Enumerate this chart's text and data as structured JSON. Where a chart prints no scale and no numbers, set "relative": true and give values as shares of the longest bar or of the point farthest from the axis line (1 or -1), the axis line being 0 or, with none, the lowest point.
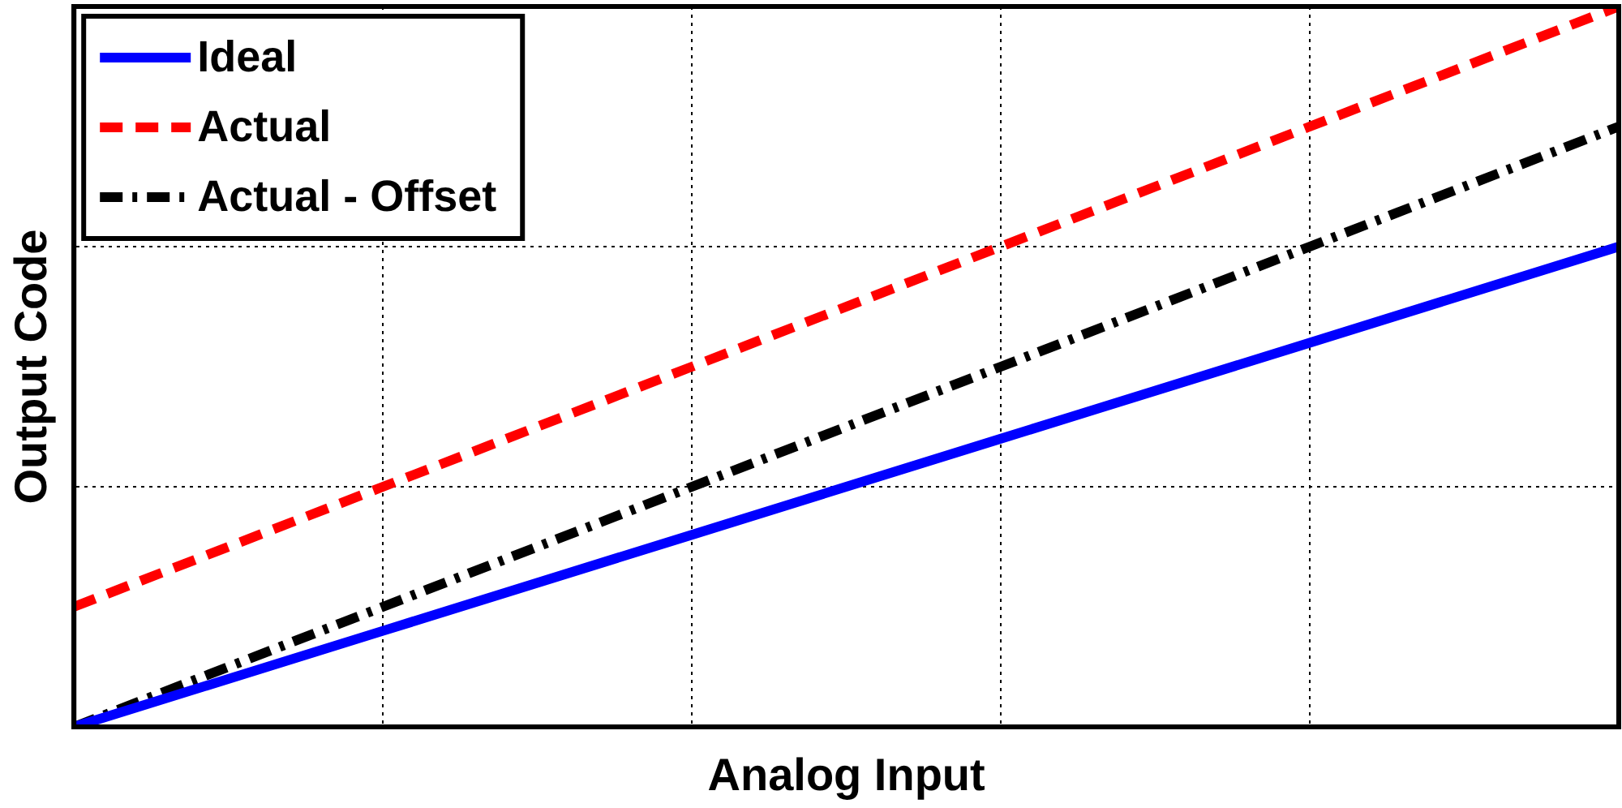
{
  "chart_data": {
    "type": "line",
    "relative": true,
    "xlabel": "Analog Input",
    "ylabel": "Output Code",
    "categories": [
      null,
      null,
      null,
      null,
      null,
      null
    ],
    "series": [
      {
        "name": "Ideal",
        "color": "#0000ff",
        "line_style": "solid",
        "values": [
          0,
          0.1333,
          0.2667,
          0.4,
          0.5333,
          0.6667
        ]
      },
      {
        "name": "Actual",
        "color": "#ff0000",
        "line_style": "dashed",
        "values": [
          0.1667,
          0.3333,
          0.5,
          0.6667,
          0.8333,
          1
        ]
      },
      {
        "name": "Actual - Offset",
        "color": "#000000",
        "line_style": "dashdot",
        "values": [
          0,
          0.1667,
          0.3333,
          0.5,
          0.6667,
          0.8333
        ]
      }
    ],
    "grid": true,
    "legend": "top left",
    "marker": "none"
  }
}
